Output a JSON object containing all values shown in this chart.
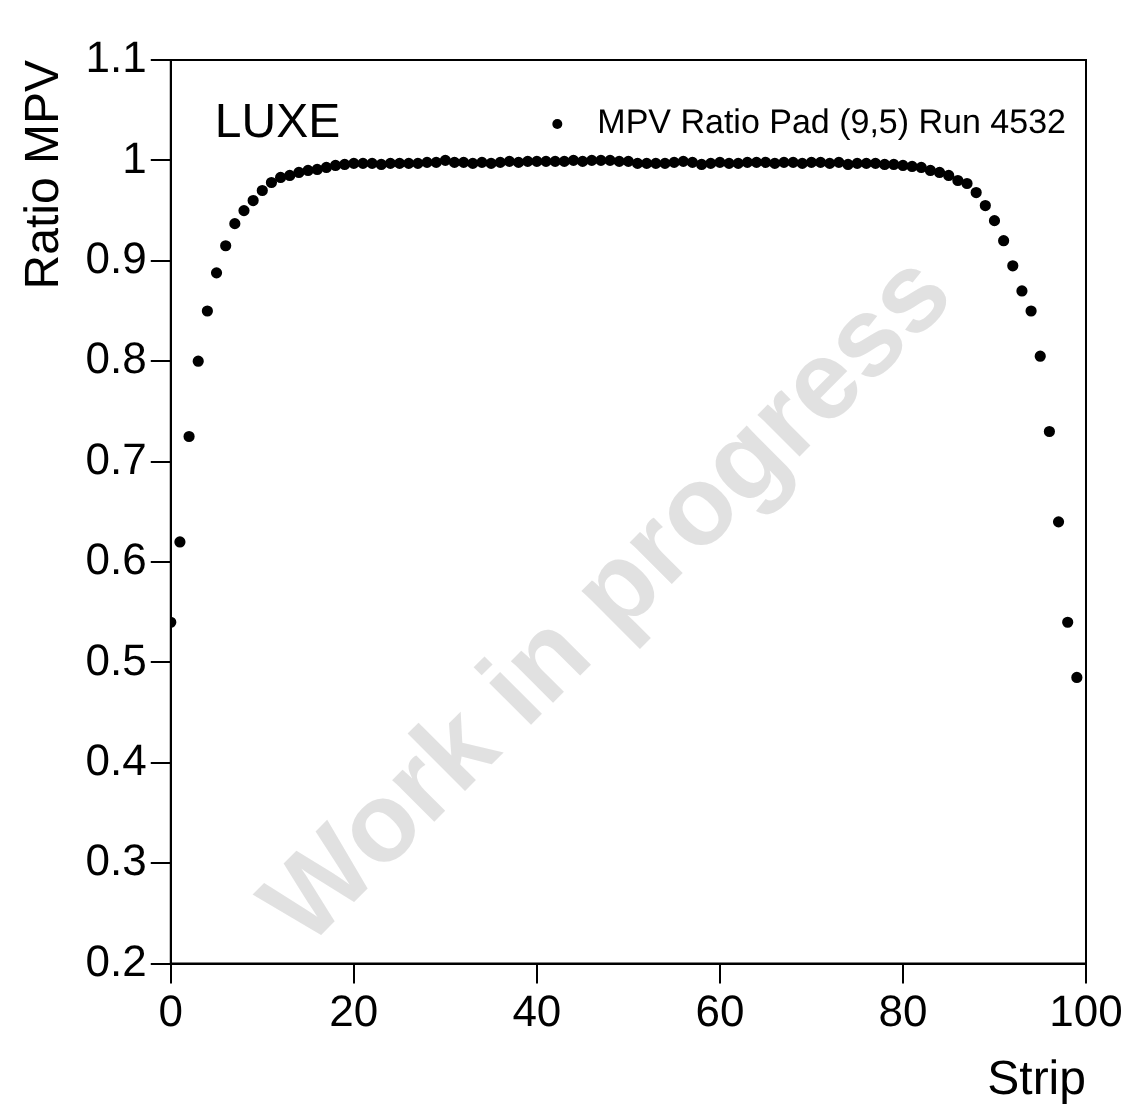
{
  "chart_data": {
    "type": "scatter",
    "xlabel": "Strip",
    "ylabel": "Ratio MPV",
    "annotations": [
      "LUXE",
      "Work in progress"
    ],
    "xlim": [
      0,
      100
    ],
    "xticks": [
      0,
      20,
      40,
      60,
      80,
      100
    ],
    "ylim": [
      0.2,
      1.1
    ],
    "yticks": [
      0.2,
      0.3,
      0.4,
      0.5,
      0.6,
      0.7,
      0.8,
      0.9,
      1,
      1.1
    ],
    "grid": false,
    "legend": "top right",
    "marker": "circle",
    "series": [
      {
        "name": "MPV Ratio Pad (9,5) Run 4532",
        "color": "#000000",
        "x": [
          0,
          1,
          2,
          3,
          4,
          5,
          6,
          7,
          8,
          9,
          10,
          11,
          12,
          13,
          14,
          15,
          16,
          17,
          18,
          19,
          20,
          21,
          22,
          23,
          24,
          25,
          26,
          27,
          28,
          29,
          30,
          31,
          32,
          33,
          34,
          35,
          36,
          37,
          38,
          39,
          40,
          41,
          42,
          43,
          44,
          45,
          46,
          47,
          48,
          49,
          50,
          51,
          52,
          53,
          54,
          55,
          56,
          57,
          58,
          59,
          60,
          61,
          62,
          63,
          64,
          65,
          66,
          67,
          68,
          69,
          70,
          71,
          72,
          73,
          74,
          75,
          76,
          77,
          78,
          79,
          80,
          81,
          82,
          83,
          84,
          85,
          86,
          87,
          88,
          89,
          90,
          91,
          92,
          93,
          94,
          95,
          96,
          97,
          98,
          99
        ],
        "values": [
          0.54,
          0.62,
          0.725,
          0.8,
          0.85,
          0.888,
          0.915,
          0.937,
          0.95,
          0.96,
          0.97,
          0.978,
          0.983,
          0.985,
          0.988,
          0.99,
          0.991,
          0.993,
          0.995,
          0.996,
          0.997,
          0.997,
          0.997,
          0.996,
          0.997,
          0.997,
          0.997,
          0.997,
          0.998,
          0.998,
          1.0,
          0.998,
          0.998,
          0.997,
          0.998,
          0.997,
          0.998,
          0.999,
          0.998,
          0.999,
          0.999,
          0.999,
          0.999,
          0.999,
          1.0,
          0.999,
          1.0,
          1.0,
          1.0,
          0.999,
          0.999,
          0.997,
          0.997,
          0.997,
          0.997,
          0.998,
          0.999,
          0.998,
          0.996,
          0.997,
          0.998,
          0.997,
          0.997,
          0.998,
          0.998,
          0.998,
          0.997,
          0.998,
          0.998,
          0.997,
          0.998,
          0.998,
          0.997,
          0.998,
          0.996,
          0.997,
          0.997,
          0.997,
          0.996,
          0.996,
          0.995,
          0.994,
          0.993,
          0.99,
          0.988,
          0.985,
          0.98,
          0.977,
          0.968,
          0.955,
          0.94,
          0.92,
          0.895,
          0.87,
          0.85,
          0.805,
          0.73,
          0.64,
          0.54,
          0.485
        ]
      }
    ]
  }
}
